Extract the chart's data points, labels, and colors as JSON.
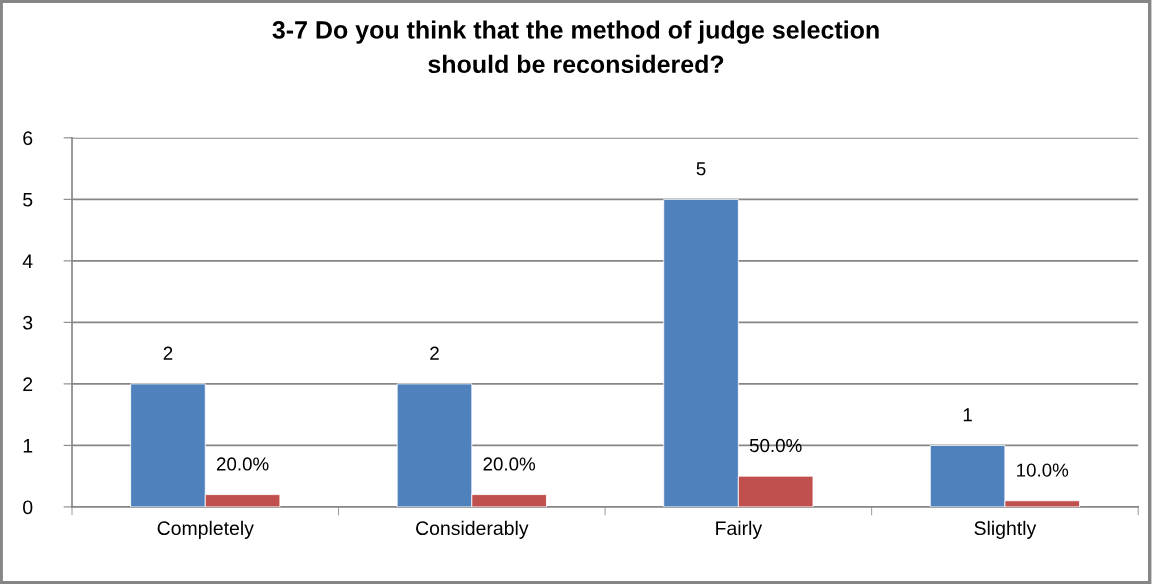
{
  "chart_data": {
    "type": "bar",
    "title": "3-7 Do you think that the method of judge selection\nshould be reconsidered?",
    "categories": [
      "Completely",
      "Considerably",
      "Fairly",
      "Slightly"
    ],
    "series": [
      {
        "color": "#4f81bd",
        "values": [
          2,
          2,
          5,
          1
        ],
        "value_labels": [
          "2",
          "2",
          "5",
          "1"
        ]
      },
      {
        "color": "#c0504d",
        "values": [
          0.2,
          0.2,
          0.5,
          0.1
        ],
        "value_labels": [
          "20.0%",
          "20.0%",
          "50.0%",
          "10.0%"
        ]
      }
    ],
    "ylim": [
      0,
      6
    ],
    "yticks": [
      0,
      1,
      2,
      3,
      4,
      5,
      6
    ],
    "grid": "y"
  }
}
